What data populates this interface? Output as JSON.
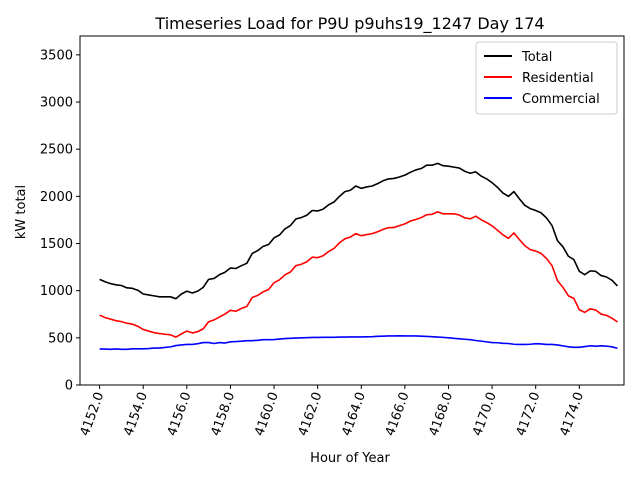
{
  "chart_data": {
    "type": "line",
    "title": "Timeseries Load for P9U p9uhs19_1247  Day 174",
    "xlabel": "Hour of Year",
    "ylabel": "kW total",
    "xlim": [
      4151.1,
      4176.05
    ],
    "ylim": [
      0,
      3700
    ],
    "xticks": [
      4152,
      4154,
      4156,
      4158,
      4160,
      4162,
      4164,
      4166,
      4168,
      4170,
      4172,
      4174
    ],
    "xtick_labels": [
      "4152.0",
      "4154.0",
      "4156.0",
      "4158.0",
      "4160.0",
      "4162.0",
      "4164.0",
      "4166.0",
      "4168.0",
      "4170.0",
      "4172.0",
      "4174.0"
    ],
    "yticks": [
      0,
      500,
      1000,
      1500,
      2000,
      2500,
      3000,
      3500
    ],
    "ytick_labels": [
      "0",
      "500",
      "1000",
      "1500",
      "2000",
      "2500",
      "3000",
      "3500"
    ],
    "legend_position": "top-right",
    "x": [
      4152.0,
      4152.25,
      4152.5,
      4152.75,
      4153.0,
      4153.25,
      4153.5,
      4153.75,
      4154.0,
      4154.25,
      4154.5,
      4154.75,
      4155.0,
      4155.25,
      4155.5,
      4155.75,
      4156.0,
      4156.25,
      4156.5,
      4156.75,
      4157.0,
      4157.25,
      4157.5,
      4157.75,
      4158.0,
      4158.25,
      4158.5,
      4158.75,
      4159.0,
      4159.25,
      4159.5,
      4159.75,
      4160.0,
      4160.25,
      4160.5,
      4160.75,
      4161.0,
      4161.25,
      4161.5,
      4161.75,
      4162.0,
      4162.25,
      4162.5,
      4162.75,
      4163.0,
      4163.25,
      4163.5,
      4163.75,
      4164.0,
      4164.25,
      4164.5,
      4164.75,
      4165.0,
      4165.25,
      4165.5,
      4165.75,
      4166.0,
      4166.25,
      4166.5,
      4166.75,
      4167.0,
      4167.25,
      4167.5,
      4167.75,
      4168.0,
      4168.25,
      4168.5,
      4168.75,
      4169.0,
      4169.25,
      4169.5,
      4169.75,
      4170.0,
      4170.25,
      4170.5,
      4170.75,
      4171.0,
      4171.25,
      4171.5,
      4171.75,
      4172.0,
      4172.25,
      4172.5,
      4172.75,
      4173.0,
      4173.25,
      4173.5,
      4173.75,
      4174.0,
      4174.25,
      4174.5,
      4174.75,
      4175.0,
      4175.25,
      4175.5,
      4175.75
    ],
    "series": [
      {
        "name": "Total",
        "color": "#000000",
        "values": [
          1120,
          1095,
          1075,
          1062,
          1055,
          1030,
          1025,
          1005,
          965,
          955,
          945,
          935,
          935,
          935,
          915,
          965,
          995,
          975,
          995,
          1035,
          1120,
          1130,
          1170,
          1195,
          1240,
          1235,
          1265,
          1290,
          1395,
          1425,
          1470,
          1490,
          1560,
          1590,
          1655,
          1690,
          1760,
          1775,
          1800,
          1850,
          1845,
          1865,
          1910,
          1940,
          2000,
          2050,
          2065,
          2110,
          2085,
          2100,
          2110,
          2135,
          2165,
          2185,
          2190,
          2205,
          2225,
          2255,
          2280,
          2295,
          2330,
          2330,
          2350,
          2325,
          2320,
          2310,
          2300,
          2265,
          2245,
          2260,
          2215,
          2185,
          2145,
          2095,
          2035,
          2000,
          2050,
          1975,
          1905,
          1870,
          1850,
          1825,
          1770,
          1690,
          1530,
          1465,
          1365,
          1330,
          1205,
          1170,
          1210,
          1205,
          1160,
          1145,
          1110,
          1050
        ]
      },
      {
        "name": "Residential",
        "color": "#ff0000",
        "values": [
          740,
          715,
          698,
          682,
          672,
          655,
          645,
          623,
          588,
          572,
          555,
          545,
          538,
          532,
          508,
          542,
          572,
          552,
          566,
          595,
          670,
          690,
          722,
          752,
          792,
          782,
          812,
          832,
          928,
          950,
          988,
          1012,
          1085,
          1115,
          1168,
          1198,
          1265,
          1280,
          1305,
          1355,
          1350,
          1370,
          1415,
          1448,
          1508,
          1550,
          1568,
          1605,
          1582,
          1595,
          1605,
          1625,
          1650,
          1668,
          1670,
          1690,
          1708,
          1738,
          1755,
          1775,
          1805,
          1810,
          1835,
          1815,
          1815,
          1815,
          1802,
          1772,
          1762,
          1790,
          1752,
          1722,
          1688,
          1640,
          1592,
          1555,
          1612,
          1542,
          1478,
          1435,
          1420,
          1395,
          1340,
          1265,
          1105,
          1035,
          945,
          918,
          798,
          770,
          808,
          795,
          752,
          738,
          708,
          668
        ]
      },
      {
        "name": "Commercial",
        "color": "#0000ff",
        "values": [
          382,
          381,
          378,
          382,
          378,
          378,
          384,
          384,
          384,
          386,
          392,
          392,
          398,
          404,
          418,
          425,
          430,
          430,
          438,
          450,
          450,
          440,
          450,
          445,
          458,
          460,
          464,
          470,
          470,
          474,
          480,
          480,
          482,
          487,
          492,
          495,
          498,
          500,
          502,
          504,
          504,
          506,
          506,
          506,
          508,
          508,
          510,
          510,
          510,
          511,
          512,
          516,
          518,
          520,
          520,
          521,
          520,
          520,
          520,
          518,
          515,
          512,
          508,
          505,
          500,
          495,
          490,
          485,
          480,
          472,
          465,
          457,
          450,
          448,
          442,
          440,
          432,
          430,
          430,
          432,
          438,
          435,
          430,
          430,
          425,
          415,
          405,
          400,
          400,
          408,
          415,
          412,
          415,
          412,
          405,
          388
        ]
      }
    ]
  }
}
